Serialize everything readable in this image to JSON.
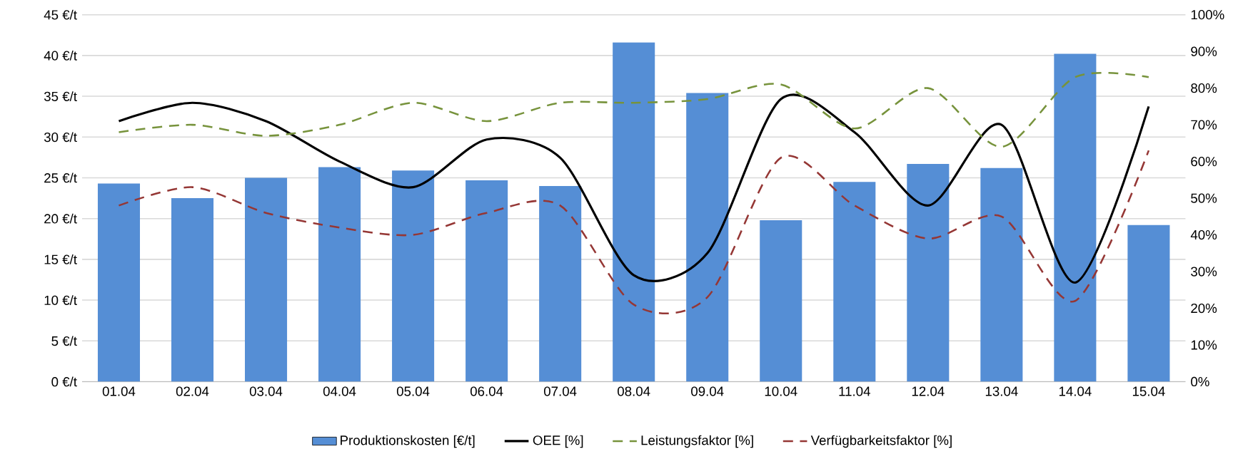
{
  "chart_data": {
    "type": "bar",
    "categories": [
      "01.04",
      "02.04",
      "03.04",
      "04.04",
      "05.04",
      "06.04",
      "07.04",
      "08.04",
      "09.04",
      "10.04",
      "11.04",
      "12.04",
      "13.04",
      "14.04",
      "15.04"
    ],
    "series": [
      {
        "name": "Produktionskosten [€/t]",
        "color": "#558ed5",
        "values": [
          24.3,
          22.5,
          25.0,
          26.3,
          25.9,
          24.7,
          24.0,
          41.6,
          35.4,
          19.8,
          24.5,
          26.7,
          26.2,
          40.2,
          19.2
        ]
      },
      {
        "name": "OEE [%]",
        "type": "line",
        "axis": "y2",
        "color": "#000000",
        "line_style": "solid",
        "values": [
          71,
          76,
          71,
          60,
          53,
          66,
          61,
          29,
          35,
          77,
          68,
          48,
          70,
          27,
          75
        ]
      },
      {
        "name": "Leistungsfaktor [%]",
        "type": "line",
        "axis": "y2",
        "color": "#77933c",
        "line_style": "dashed",
        "values": [
          68,
          70,
          67,
          70,
          76,
          71,
          76,
          76,
          77,
          81,
          69,
          80,
          64,
          83,
          83
        ]
      },
      {
        "name": "Verfügbarkeitsfaktor [%]",
        "type": "line",
        "axis": "y2",
        "color": "#953735",
        "line_style": "dashed",
        "values": [
          48,
          53,
          46,
          42,
          40,
          46,
          48,
          21,
          23,
          61,
          48,
          39,
          45,
          22,
          63
        ]
      }
    ],
    "ylim": [
      0,
      45
    ],
    "yticks": [
      {
        "value": 0,
        "label": "0 €/t"
      },
      {
        "value": 5,
        "label": "5 €/t"
      },
      {
        "value": 10,
        "label": "10 €/t"
      },
      {
        "value": 15,
        "label": "15 €/t"
      },
      {
        "value": 20,
        "label": "20 €/t"
      },
      {
        "value": 25,
        "label": "25 €/t"
      },
      {
        "value": 30,
        "label": "30 €/t"
      },
      {
        "value": 35,
        "label": "35 €/t"
      },
      {
        "value": 40,
        "label": "40 €/t"
      },
      {
        "value": 45,
        "label": "45 €/t"
      }
    ],
    "y2lim": [
      0,
      100
    ],
    "y2ticks": [
      {
        "value": 0,
        "label": "0%"
      },
      {
        "value": 10,
        "label": "10%"
      },
      {
        "value": 20,
        "label": "20%"
      },
      {
        "value": 30,
        "label": "30%"
      },
      {
        "value": 40,
        "label": "40%"
      },
      {
        "value": 50,
        "label": "50%"
      },
      {
        "value": 60,
        "label": "60%"
      },
      {
        "value": 70,
        "label": "70%"
      },
      {
        "value": 80,
        "label": "80%"
      },
      {
        "value": 90,
        "label": "90%"
      },
      {
        "value": 100,
        "label": "100%"
      }
    ],
    "grid": "y",
    "legend": "bottom",
    "marker": "none"
  }
}
